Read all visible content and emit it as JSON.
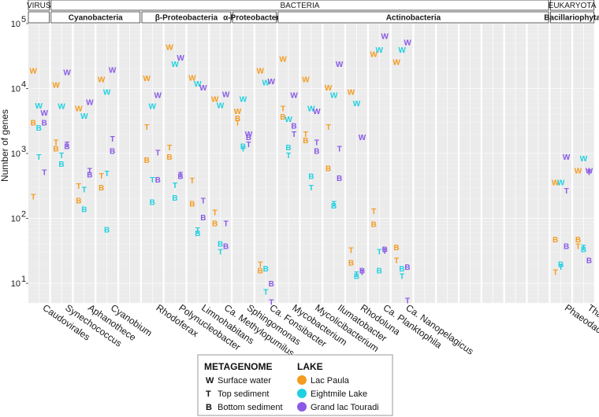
{
  "chart_data": {
    "type": "scatter",
    "yscale": "log",
    "ylabel": "Number of genes",
    "ylim": [
      5,
      100000
    ],
    "y_ticks": [
      {
        "value": 10,
        "label": "10"
      },
      {
        "value": 100,
        "label": "10"
      },
      {
        "value": 1000,
        "label": "10"
      },
      {
        "value": 10000,
        "label": "10"
      },
      {
        "value": 100000,
        "label": "10"
      }
    ],
    "y_tick_exponents": [
      "1",
      "2",
      "3",
      "4",
      "5"
    ],
    "top_groups": [
      {
        "label": "VIRUS",
        "from": 0,
        "to": 0
      },
      {
        "label": "BACTERIA",
        "from": 1,
        "to": 22
      },
      {
        "label": "EUKARYOTA",
        "from": 23,
        "to": 24
      }
    ],
    "sub_groups": [
      {
        "label": "",
        "from": 0,
        "to": 0
      },
      {
        "label": "Cyanobacteria",
        "from": 1,
        "to": 4
      },
      {
        "label": "β-Proteobacteria",
        "from": 5,
        "to": 8
      },
      {
        "label": "α-Proteobacteria",
        "from": 9,
        "to": 10
      },
      {
        "label": "Actinobacteria",
        "from": 11,
        "to": 22
      },
      {
        "label": "Bacillariophyta",
        "from": 23,
        "to": 24
      }
    ],
    "categories": [
      "Caudovirales",
      "Synechococcus",
      "Aphanothece",
      "Cyanobium",
      "",
      "Rhodoferax",
      "Polynucleobacter",
      "Limnohabitans",
      "Ca. Methylopumilus",
      "Sphingomonas",
      "Ca. Fonsibacter",
      "Mycobacterium",
      "Mycolicibacterium",
      "Ilumatobacter",
      "Rhodoluna",
      "Ca. Planktophila",
      "Ca. Nanopelagicus",
      "",
      "",
      "",
      "",
      "",
      "",
      "Phaeodactylum",
      "Thalassiosira"
    ],
    "lake_colors": {
      "Lac Paula": "#f39c1f",
      "Eightmile Lake": "#1fd0e0",
      "Grand lac Touradi": "#8a5ae6"
    },
    "points": [
      {
        "genus": 0,
        "lake": "Lac Paula",
        "W": 19000,
        "T": 220,
        "B": 3000
      },
      {
        "genus": 0,
        "lake": "Eightmile Lake",
        "W": 5500,
        "T": 900,
        "B": 2500
      },
      {
        "genus": 0,
        "lake": "Grand lac Touradi",
        "W": 4300,
        "T": 520,
        "B": 3000
      },
      {
        "genus": 1,
        "lake": "Lac Paula",
        "W": 11500,
        "T": 1500,
        "B": 1200
      },
      {
        "genus": 1,
        "lake": "Eightmile Lake",
        "W": 5400,
        "T": 950,
        "B": 700
      },
      {
        "genus": 1,
        "lake": "Grand lac Touradi",
        "W": 18000,
        "T": 1400,
        "B": 1300
      },
      {
        "genus": 2,
        "lake": "Lac Paula",
        "W": 5000,
        "T": 320,
        "B": 190
      },
      {
        "genus": 2,
        "lake": "Eightmile Lake",
        "W": 3800,
        "T": 280,
        "B": 140
      },
      {
        "genus": 2,
        "lake": "Grand lac Touradi",
        "W": 6200,
        "T": 550,
        "B": 480
      },
      {
        "genus": 3,
        "lake": "Lac Paula",
        "W": 14000,
        "T": 460,
        "B": 300
      },
      {
        "genus": 3,
        "lake": "Eightmile Lake",
        "W": 9000,
        "T": 500,
        "B": 68
      },
      {
        "genus": 3,
        "lake": "Grand lac Touradi",
        "W": 19500,
        "T": 1700,
        "B": 1100
      },
      {
        "genus": 5,
        "lake": "Lac Paula",
        "W": 14500,
        "T": 2600,
        "B": 800
      },
      {
        "genus": 5,
        "lake": "Eightmile Lake",
        "W": 5400,
        "T": 400,
        "B": 180
      },
      {
        "genus": 5,
        "lake": "Grand lac Touradi",
        "W": 8000,
        "T": 1050,
        "B": 400
      },
      {
        "genus": 6,
        "lake": "Lac Paula",
        "W": 44000,
        "T": 1250,
        "B": 900
      },
      {
        "genus": 6,
        "lake": "Eightmile Lake",
        "W": 24000,
        "T": 330,
        "B": 210
      },
      {
        "genus": 6,
        "lake": "Grand lac Touradi",
        "W": 30000,
        "T": 480,
        "B": 450
      },
      {
        "genus": 7,
        "lake": "Lac Paula",
        "W": 14800,
        "T": 390,
        "B": 170
      },
      {
        "genus": 7,
        "lake": "Eightmile Lake",
        "W": 12000,
        "T": 67,
        "B": 60
      },
      {
        "genus": 7,
        "lake": "Grand lac Touradi",
        "W": 10500,
        "T": 190,
        "B": 105
      },
      {
        "genus": 8,
        "lake": "Lac Paula",
        "W": 7000,
        "T": 125,
        "B": 85
      },
      {
        "genus": 8,
        "lake": "Eightmile Lake",
        "W": 5600,
        "T": 31,
        "B": 41
      },
      {
        "genus": 8,
        "lake": "Grand lac Touradi",
        "W": 8200,
        "T": 85,
        "B": 38
      },
      {
        "genus": 9,
        "lake": "Lac Paula",
        "W": 4500,
        "T": 3000,
        "B": 3500
      },
      {
        "genus": 9,
        "lake": "Eightmile Lake",
        "W": 7000,
        "T": 1200,
        "B": 1300
      },
      {
        "genus": 9,
        "lake": "Grand lac Touradi",
        "W": 2000,
        "T": 1400,
        "B": 1800
      },
      {
        "genus": 10,
        "lake": "Lac Paula",
        "W": 19000,
        "T": 20,
        "B": 16
      },
      {
        "genus": 10,
        "lake": "Eightmile Lake",
        "W": 12500,
        "T": 7.5,
        "B": 17
      },
      {
        "genus": 10,
        "lake": "Grand lac Touradi",
        "W": 13000,
        "T": 5.2,
        "B": 10
      },
      {
        "genus": 11,
        "lake": "Lac Paula",
        "W": 29000,
        "T": 5000,
        "B": 3700
      },
      {
        "genus": 11,
        "lake": "Eightmile Lake",
        "W": 3400,
        "T": 950,
        "B": 1250
      },
      {
        "genus": 11,
        "lake": "Grand lac Touradi",
        "W": 8000,
        "T": 2000,
        "B": 2700
      },
      {
        "genus": 12,
        "lake": "Lac Paula",
        "W": 14000,
        "T": 2000,
        "B": 1600
      },
      {
        "genus": 12,
        "lake": "Eightmile Lake",
        "W": 5000,
        "T": 300,
        "B": 450
      },
      {
        "genus": 12,
        "lake": "Grand lac Touradi",
        "W": 4500,
        "T": 1500,
        "B": 1100
      },
      {
        "genus": 13,
        "lake": "Lac Paula",
        "W": 10500,
        "T": 2600,
        "B": 600
      },
      {
        "genus": 13,
        "lake": "Eightmile Lake",
        "W": 8000,
        "T": 170,
        "B": 160
      },
      {
        "genus": 13,
        "lake": "Grand lac Touradi",
        "W": 24000,
        "T": 1200,
        "B": 420
      },
      {
        "genus": 14,
        "lake": "Lac Paula",
        "W": 9000,
        "T": 33,
        "B": 21
      },
      {
        "genus": 14,
        "lake": "Eightmile Lake",
        "W": 6000,
        "T": 14,
        "B": 13
      },
      {
        "genus": 14,
        "lake": "Grand lac Touradi",
        "W": 1800,
        "T": 15,
        "B": 16
      },
      {
        "genus": 15,
        "lake": "Lac Paula",
        "W": 34000,
        "T": 130,
        "B": 82
      },
      {
        "genus": 15,
        "lake": "Eightmile Lake",
        "W": 40000,
        "T": 31,
        "B": 16
      },
      {
        "genus": 15,
        "lake": "Grand lac Touradi",
        "W": 65000,
        "T": 32,
        "B": 34
      },
      {
        "genus": 16,
        "lake": "Lac Paula",
        "W": 26000,
        "T": 23,
        "B": 36
      },
      {
        "genus": 16,
        "lake": "Eightmile Lake",
        "W": 40000,
        "T": 13,
        "B": 17
      },
      {
        "genus": 16,
        "lake": "Grand lac Touradi",
        "W": 52000,
        "T": 5.5,
        "B": 18
      },
      {
        "genus": 23,
        "lake": "Lac Paula",
        "W": 360,
        "T": 15,
        "B": 48
      },
      {
        "genus": 23,
        "lake": "Eightmile Lake",
        "W": 360,
        "T": 18,
        "B": 20
      },
      {
        "genus": 23,
        "lake": "Grand lac Touradi",
        "W": 900,
        "T": 270,
        "B": 38
      },
      {
        "genus": 24,
        "lake": "Lac Paula",
        "W": 550,
        "T": 38,
        "B": 48
      },
      {
        "genus": 24,
        "lake": "Eightmile Lake",
        "W": 850,
        "T": 36,
        "B": 34
      },
      {
        "genus": 24,
        "lake": "Grand lac Touradi",
        "W": 550,
        "T": 520,
        "B": 23
      }
    ]
  },
  "legend": {
    "metagenome_title": "METAGENOME",
    "metagenome": [
      {
        "symbol": "W",
        "label": "Surface water"
      },
      {
        "symbol": "T",
        "label": "Top sediment"
      },
      {
        "symbol": "B",
        "label": "Bottom sediment"
      }
    ],
    "lake_title": "LAKE",
    "lakes": [
      {
        "label": "Lac Paula",
        "color": "#f39c1f"
      },
      {
        "label": "Eightmile Lake",
        "color": "#1fd0e0"
      },
      {
        "label": "Grand lac Touradi",
        "color": "#8a5ae6"
      }
    ]
  }
}
